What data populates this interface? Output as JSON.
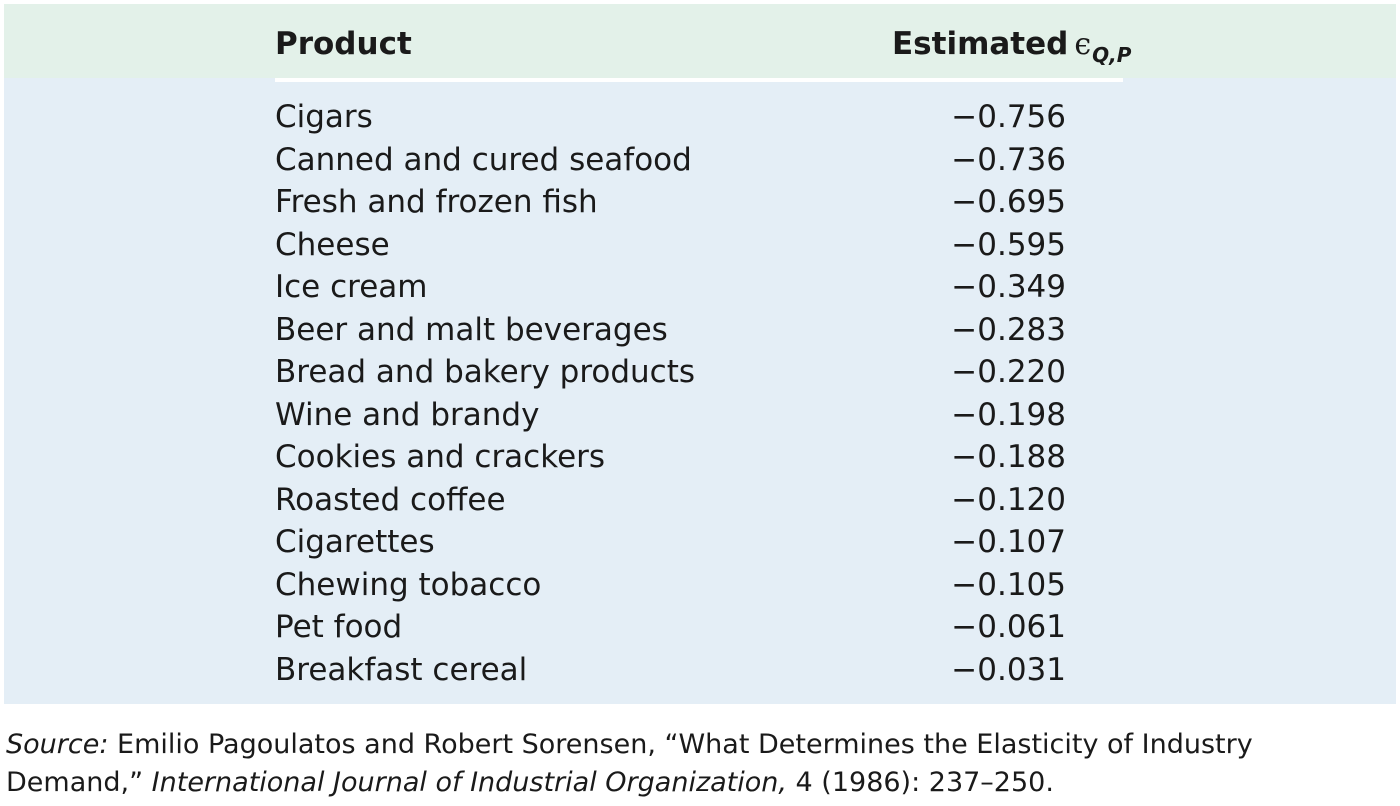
{
  "table": {
    "headers": {
      "product": "Product",
      "estimate_word": "Estimated",
      "estimate_symbol": "ϵ",
      "estimate_subscript": "Q,P"
    },
    "rows": [
      {
        "product": "Cigars",
        "value": "−0.756"
      },
      {
        "product": "Canned and cured seafood",
        "value": "−0.736"
      },
      {
        "product": "Fresh and frozen fish",
        "value": "−0.695"
      },
      {
        "product": "Cheese",
        "value": "−0.595"
      },
      {
        "product": "Ice cream",
        "value": "−0.349"
      },
      {
        "product": "Beer and malt beverages",
        "value": "−0.283"
      },
      {
        "product": "Bread and bakery products",
        "value": "−0.220"
      },
      {
        "product": "Wine and brandy",
        "value": "−0.198"
      },
      {
        "product": "Cookies and crackers",
        "value": "−0.188"
      },
      {
        "product": "Roasted coffee",
        "value": "−0.120"
      },
      {
        "product": "Cigarettes",
        "value": "−0.107"
      },
      {
        "product": "Chewing tobacco",
        "value": "−0.105"
      },
      {
        "product": "Pet food",
        "value": "−0.061"
      },
      {
        "product": "Breakfast cereal",
        "value": "−0.031"
      }
    ]
  },
  "source": {
    "label": "Source:",
    "authors_title": " Emilio Pagoulatos and Robert Sorensen, “What Determines the Elasticity of Industry Demand,” ",
    "journal": "International Journal of Industrial Organization,",
    "citation": " 4 (1986): 237–250."
  },
  "colors": {
    "header_background": "#e3f1e9",
    "body_background": "#e4eef6",
    "rule": "#ffffff",
    "text": "#1a1a1a"
  }
}
